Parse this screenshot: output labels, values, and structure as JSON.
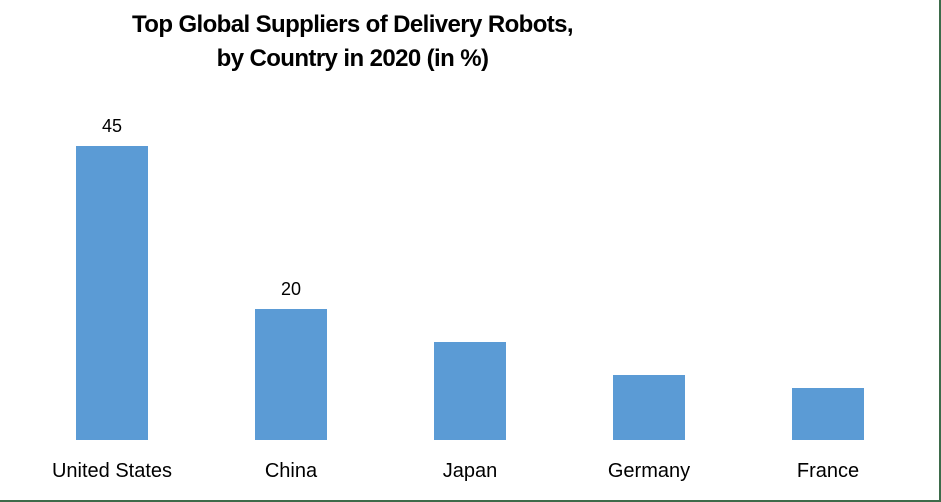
{
  "title_line1": "Top Global Suppliers of Delivery Robots,",
  "title_line2": "by Country in 2020 (in %)",
  "bar_color": "#5b9bd5",
  "border_color": "#3d6b4a",
  "chart_data": {
    "type": "bar",
    "title": "Top Global Suppliers of Delivery Robots, by Country in 2020 (in %)",
    "categories": [
      "United States",
      "China",
      "Japan",
      "Germany",
      "France"
    ],
    "values": [
      45,
      20,
      15,
      10,
      8
    ],
    "data_labels": [
      "45",
      "20",
      "",
      "",
      ""
    ],
    "xlabel": "",
    "ylabel": "",
    "ylim": [
      0,
      50
    ],
    "grid": false,
    "legend": false
  }
}
